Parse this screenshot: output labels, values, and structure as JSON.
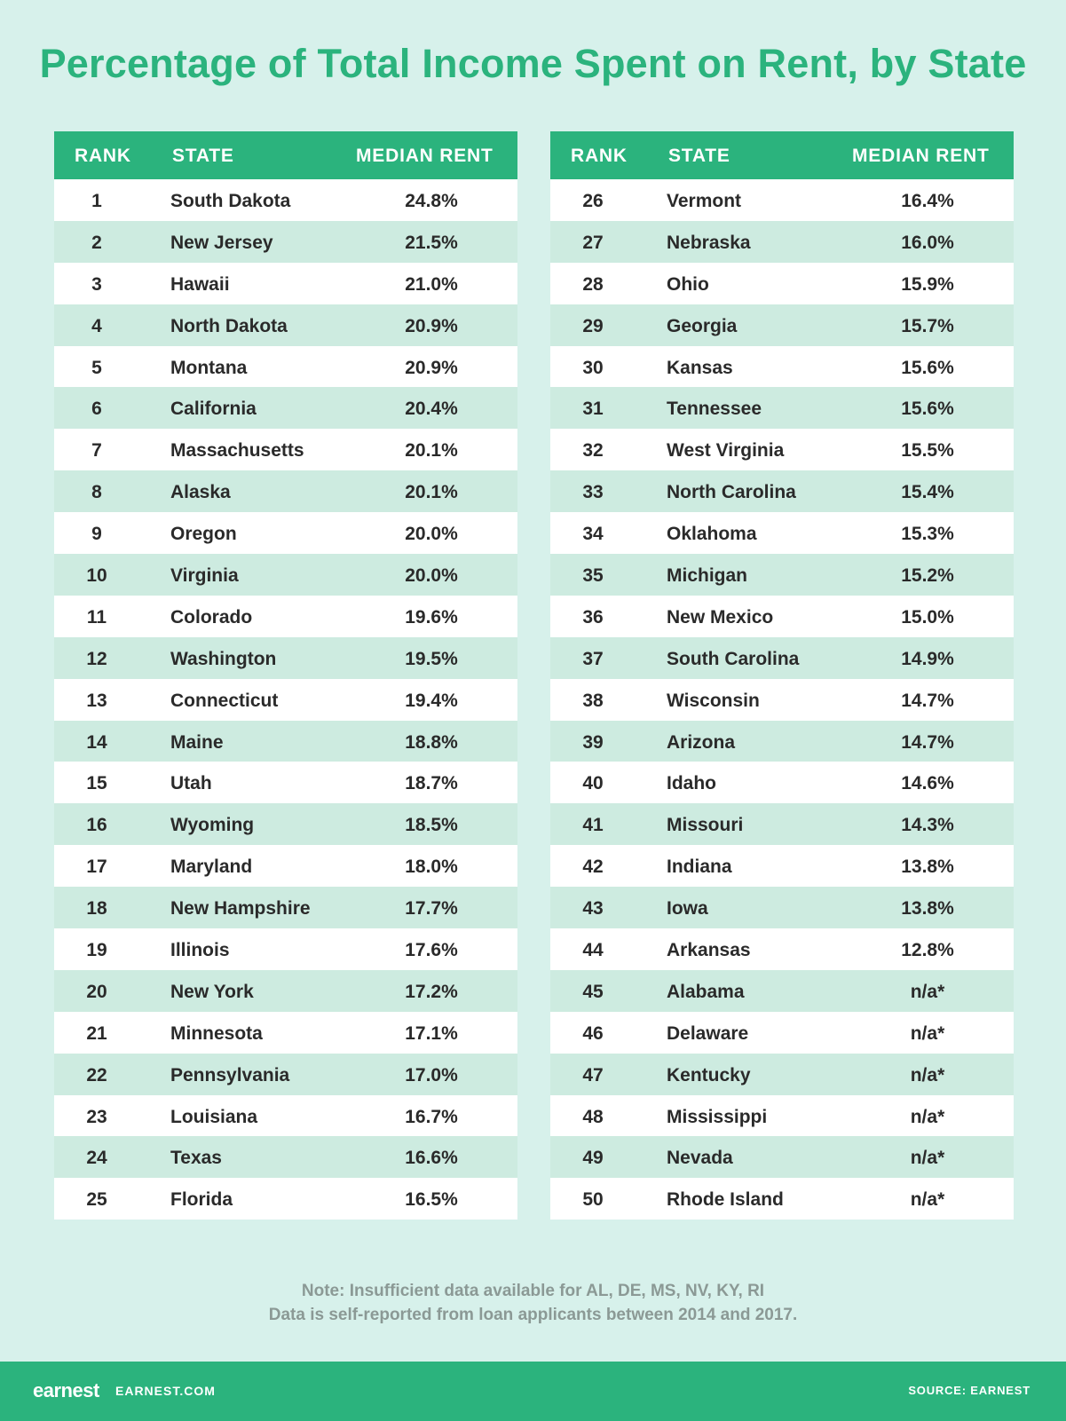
{
  "title": "Percentage of Total Income Spent on Rent, by State",
  "tables": [
    {
      "header": [
        "RANK",
        "STATE",
        "MEDIAN RENT"
      ],
      "rows": [
        [
          "1",
          "South Dakota",
          "24.8%"
        ],
        [
          "2",
          "New Jersey",
          "21.5%"
        ],
        [
          "3",
          "Hawaii",
          "21.0%"
        ],
        [
          "4",
          "North Dakota",
          "20.9%"
        ],
        [
          "5",
          "Montana",
          "20.9%"
        ],
        [
          "6",
          "California",
          "20.4%"
        ],
        [
          "7",
          "Massachusetts",
          "20.1%"
        ],
        [
          "8",
          "Alaska",
          "20.1%"
        ],
        [
          "9",
          "Oregon",
          "20.0%"
        ],
        [
          "10",
          "Virginia",
          "20.0%"
        ],
        [
          "11",
          "Colorado",
          "19.6%"
        ],
        [
          "12",
          "Washington",
          "19.5%"
        ],
        [
          "13",
          "Connecticut",
          "19.4%"
        ],
        [
          "14",
          "Maine",
          "18.8%"
        ],
        [
          "15",
          "Utah",
          "18.7%"
        ],
        [
          "16",
          "Wyoming",
          "18.5%"
        ],
        [
          "17",
          "Maryland",
          "18.0%"
        ],
        [
          "18",
          "New Hampshire",
          "17.7%"
        ],
        [
          "19",
          "Illinois",
          "17.6%"
        ],
        [
          "20",
          "New York",
          "17.2%"
        ],
        [
          "21",
          "Minnesota",
          "17.1%"
        ],
        [
          "22",
          "Pennsylvania",
          "17.0%"
        ],
        [
          "23",
          "Louisiana",
          "16.7%"
        ],
        [
          "24",
          "Texas",
          "16.6%"
        ],
        [
          "25",
          "Florida",
          "16.5%"
        ]
      ]
    },
    {
      "header": [
        "RANK",
        "STATE",
        "MEDIAN RENT"
      ],
      "rows": [
        [
          "26",
          "Vermont",
          "16.4%"
        ],
        [
          "27",
          "Nebraska",
          "16.0%"
        ],
        [
          "28",
          "Ohio",
          "15.9%"
        ],
        [
          "29",
          "Georgia",
          "15.7%"
        ],
        [
          "30",
          "Kansas",
          "15.6%"
        ],
        [
          "31",
          "Tennessee",
          "15.6%"
        ],
        [
          "32",
          "West Virginia",
          "15.5%"
        ],
        [
          "33",
          "North Carolina",
          "15.4%"
        ],
        [
          "34",
          "Oklahoma",
          "15.3%"
        ],
        [
          "35",
          "Michigan",
          "15.2%"
        ],
        [
          "36",
          "New Mexico",
          "15.0%"
        ],
        [
          "37",
          "South Carolina",
          "14.9%"
        ],
        [
          "38",
          "Wisconsin",
          "14.7%"
        ],
        [
          "39",
          "Arizona",
          "14.7%"
        ],
        [
          "40",
          "Idaho",
          "14.6%"
        ],
        [
          "41",
          "Missouri",
          "14.3%"
        ],
        [
          "42",
          "Indiana",
          "13.8%"
        ],
        [
          "43",
          "Iowa",
          "13.8%"
        ],
        [
          "44",
          "Arkansas",
          "12.8%"
        ],
        [
          "45",
          "Alabama",
          "n/a*"
        ],
        [
          "46",
          "Delaware",
          "n/a*"
        ],
        [
          "47",
          "Kentucky",
          "n/a*"
        ],
        [
          "48",
          "Mississippi",
          "n/a*"
        ],
        [
          "49",
          "Nevada",
          "n/a*"
        ],
        [
          "50",
          "Rhode Island",
          "n/a*"
        ]
      ]
    }
  ],
  "notes": [
    "Note: Insufficient data available for AL, DE, MS, NV, KY, RI",
    "Data is self-reported from loan applicants between 2014 and 2017."
  ],
  "footer": {
    "logo": "earnest",
    "site": "EARNEST.COM",
    "source": "SOURCE: EARNEST"
  }
}
